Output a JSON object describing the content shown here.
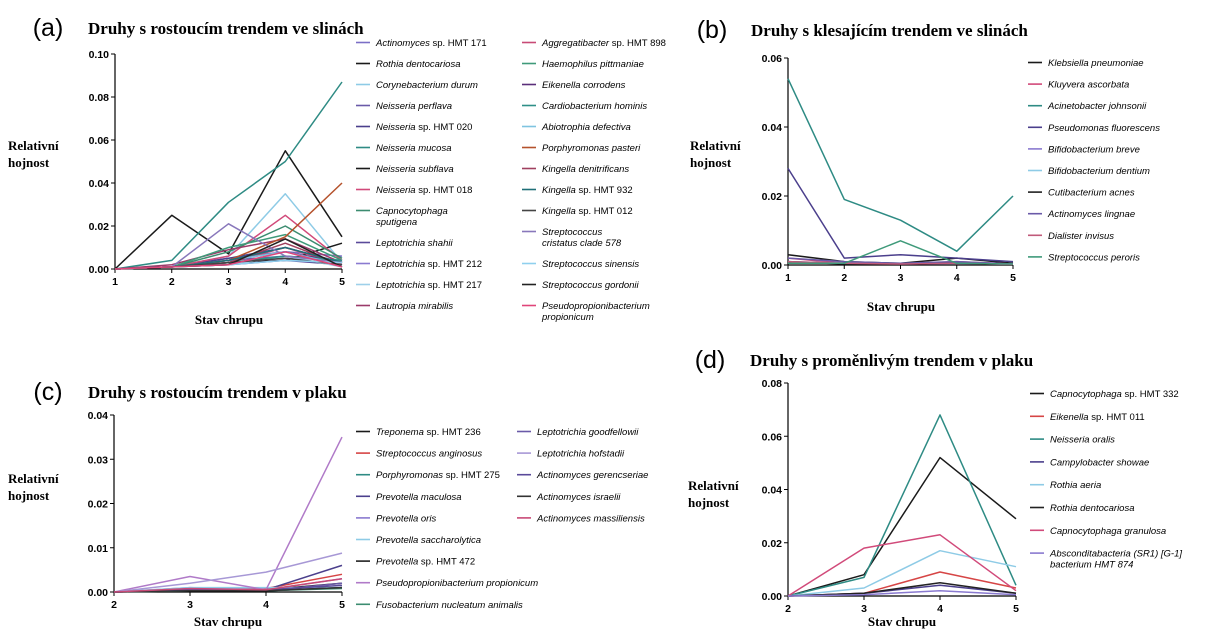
{
  "chart_data": [
    {
      "panel": "(a)",
      "type": "line",
      "title": "Druhy s rostoucím trendem ve slinách",
      "xlabel": "Stav chrupu",
      "ylabel": [
        "Relativní",
        "hojnost"
      ],
      "x": [
        1,
        2,
        3,
        4,
        5
      ],
      "xticks": [
        "1",
        "2",
        "3",
        "4",
        "5"
      ],
      "ylim": [
        0,
        0.1
      ],
      "yticks": [
        "0.00",
        "0.02",
        "0.04",
        "0.06",
        "0.08",
        "0.10"
      ],
      "legend_placement": "right, two columns",
      "series": [
        {
          "name": [
            "Actinomyces",
            " sp. HMT 171"
          ],
          "color": "#7b6fc6",
          "values": [
            0,
            0.001,
            0.005,
            0.008,
            0.006
          ]
        },
        {
          "name": [
            "Rothia dentocariosa"
          ],
          "color": "#1a1a1a",
          "values": [
            0,
            0.025,
            0.007,
            0.055,
            0.015
          ]
        },
        {
          "name": [
            "Corynebacterium durum"
          ],
          "color": "#8ecbe6",
          "values": [
            0,
            0.001,
            0.006,
            0.035,
            0.003
          ]
        },
        {
          "name": [
            "Neisseria perflava"
          ],
          "color": "#6a5aa8",
          "values": [
            0,
            0.001,
            0.004,
            0.006,
            0.004
          ]
        },
        {
          "name": [
            "Neisseria",
            " sp. HMT 020"
          ],
          "color": "#4b3f8c",
          "values": [
            0,
            0.001,
            0.005,
            0.01,
            0.003
          ]
        },
        {
          "name": [
            "Neisseria mucosa"
          ],
          "color": "#2e8b84",
          "values": [
            0,
            0.004,
            0.031,
            0.05,
            0.087
          ]
        },
        {
          "name": [
            "Neisseria subflava"
          ],
          "color": "#1a1a1a",
          "values": [
            0,
            0.001,
            0.003,
            0.004,
            0.012
          ]
        },
        {
          "name": [
            "Neisseria",
            " sp. HMT 018"
          ],
          "color": "#d14a7a",
          "values": [
            0,
            0.001,
            0.006,
            0.025,
            0.004
          ]
        },
        {
          "name": [
            "Capnocytophaga",
            "sputigena"
          ],
          "color": "#3c8c70",
          "values": [
            0,
            0.001,
            0.008,
            0.02,
            0.005
          ]
        },
        {
          "name": [
            "Leptotrichia shahii"
          ],
          "color": "#5a4a9a",
          "values": [
            0,
            0.001,
            0.002,
            0.004,
            0.002
          ]
        },
        {
          "name": [
            "Leptotrichia",
            " sp. HMT 212"
          ],
          "color": "#8a7ad0",
          "values": [
            0,
            0.001,
            0.003,
            0.005,
            0.002
          ]
        },
        {
          "name": [
            "Leptotrichia",
            " sp. HMT 217"
          ],
          "color": "#9ed0ea",
          "values": [
            0,
            0.001,
            0.002,
            0.006,
            0.001
          ]
        },
        {
          "name": [
            "Lautropia mirabilis"
          ],
          "color": "#9b3a6a",
          "values": [
            0,
            0.002,
            0.009,
            0.014,
            0.003
          ]
        },
        {
          "name": [
            "Aggregatibacter",
            " sp. HMT 898"
          ],
          "color": "#c84a76",
          "values": [
            0,
            0.001,
            0.003,
            0.01,
            0.002
          ]
        },
        {
          "name": [
            "Haemophilus pittmaniae"
          ],
          "color": "#3f9a7a",
          "values": [
            0,
            0.001,
            0.01,
            0.016,
            0.004
          ]
        },
        {
          "name": [
            "Eikenella corrodens"
          ],
          "color": "#5a2f7a",
          "values": [
            0,
            0.001,
            0.004,
            0.008,
            0.003
          ]
        },
        {
          "name": [
            "Cardiobacterium hominis"
          ],
          "color": "#2f8f88",
          "values": [
            0,
            0.001,
            0.003,
            0.006,
            0.004
          ]
        },
        {
          "name": [
            "Abiotrophia defectiva"
          ],
          "color": "#7fc4e0",
          "values": [
            0,
            0.001,
            0.004,
            0.008,
            0.002
          ]
        },
        {
          "name": [
            "Porphyromonas pasteri"
          ],
          "color": "#b5522c",
          "values": [
            0,
            0.001,
            0.004,
            0.015,
            0.04
          ]
        },
        {
          "name": [
            "Kingella denitrificans"
          ],
          "color": "#a0405f",
          "values": [
            0,
            0.001,
            0.003,
            0.012,
            0.002
          ]
        },
        {
          "name": [
            "Kingella",
            " sp. HMT 932"
          ],
          "color": "#1f6f78",
          "values": [
            0,
            0.001,
            0.004,
            0.01,
            0.003
          ]
        },
        {
          "name": [
            "Kingella",
            " sp. HMT 012"
          ],
          "color": "#444444",
          "values": [
            0,
            0.001,
            0.003,
            0.005,
            0.002
          ]
        },
        {
          "name": [
            "Streptococcus",
            "cristatus clade 578"
          ],
          "color": "#8877bb",
          "values": [
            0,
            0.001,
            0.021,
            0.006,
            0.003
          ]
        },
        {
          "name": [
            "Streptococcus sinensis"
          ],
          "color": "#8fd0ee",
          "values": [
            0,
            0.001,
            0.002,
            0.004,
            0.003
          ]
        },
        {
          "name": [
            "Streptococcus gordonii"
          ],
          "color": "#222222",
          "values": [
            0,
            0.001,
            0.002,
            0.014,
            0.001
          ]
        },
        {
          "name": [
            "Pseudopropionibacterium",
            "propionicum"
          ],
          "color": "#e0457a",
          "values": [
            0,
            0.001,
            0.002,
            0.008,
            0.001
          ]
        }
      ]
    },
    {
      "panel": "(b)",
      "type": "line",
      "title": "Druhy s klesajícím trendem ve slinách",
      "xlabel": "Stav chrupu",
      "ylabel": [
        "Relativní",
        "hojnost"
      ],
      "x": [
        1,
        2,
        3,
        4,
        5
      ],
      "xticks": [
        "1",
        "2",
        "3",
        "4",
        "5"
      ],
      "ylim": [
        0,
        0.06
      ],
      "yticks": [
        "0.00",
        "0.02",
        "0.04",
        "0.06"
      ],
      "legend_placement": "right",
      "series": [
        {
          "name": [
            "Klebsiella pneumoniae"
          ],
          "color": "#1a1a1a",
          "values": [
            0.003,
            0.001,
            0.0005,
            0.002,
            0.0005
          ]
        },
        {
          "name": [
            "Kluyvera ascorbata"
          ],
          "color": "#d14a7a",
          "values": [
            0.002,
            0.0005,
            0.0003,
            0.001,
            0.0003
          ]
        },
        {
          "name": [
            "Acinetobacter johnsonii"
          ],
          "color": "#2e8b84",
          "values": [
            0.054,
            0.019,
            0.013,
            0.004,
            0.02
          ]
        },
        {
          "name": [
            "Pseudomonas fluorescens"
          ],
          "color": "#4b3f8c",
          "values": [
            0.028,
            0.002,
            0.003,
            0.002,
            0.001
          ]
        },
        {
          "name": [
            "Bifidobacterium breve"
          ],
          "color": "#8a7ad0",
          "values": [
            0.001,
            0.0005,
            0.0003,
            0.0005,
            0.0002
          ]
        },
        {
          "name": [
            "Bifidobacterium dentium"
          ],
          "color": "#8ecbe6",
          "values": [
            0.001,
            0.0005,
            0.0005,
            0.0005,
            0.0003
          ]
        },
        {
          "name": [
            "Cutibacterium acnes"
          ],
          "color": "#222222",
          "values": [
            0.001,
            0.0003,
            0.0002,
            0.0008,
            0.0002
          ]
        },
        {
          "name": [
            "Actinomyces lingnae"
          ],
          "color": "#6a5aa8",
          "values": [
            0.002,
            0.001,
            0.0005,
            0.001,
            0.0003
          ]
        },
        {
          "name": [
            "Dialister invisus"
          ],
          "color": "#c05a7a",
          "values": [
            0.001,
            0.0005,
            0.0003,
            0.0005,
            0.0002
          ]
        },
        {
          "name": [
            "Streptococcus peroris"
          ],
          "color": "#3f9a7a",
          "values": [
            0.0005,
            0.0005,
            0.007,
            0.0005,
            0.0003
          ]
        }
      ]
    },
    {
      "panel": "(c)",
      "type": "line",
      "title": "Druhy s rostoucím trendem v plaku",
      "xlabel": "Stav chrupu",
      "ylabel": [
        "Relativní",
        "hojnost"
      ],
      "x": [
        2,
        3,
        4,
        5
      ],
      "xticks": [
        "2",
        "3",
        "4",
        "5"
      ],
      "ylim": [
        0,
        0.04
      ],
      "yticks": [
        "0.00",
        "0.01",
        "0.02",
        "0.03",
        "0.04"
      ],
      "legend_placement": "right, two columns",
      "series": [
        {
          "name": [
            "Treponema",
            " sp. HMT 236"
          ],
          "color": "#1a1a1a",
          "values": [
            0,
            0.0005,
            0.0005,
            0.002
          ]
        },
        {
          "name": [
            "Streptococcus anginosus"
          ],
          "color": "#d64545",
          "values": [
            0,
            0.0005,
            0.0008,
            0.004
          ]
        },
        {
          "name": [
            "Porphyromonas",
            " sp. HMT 275"
          ],
          "color": "#2e8b84",
          "values": [
            0,
            0.0005,
            0.0003,
            0.001
          ]
        },
        {
          "name": [
            "Prevotella maculosa"
          ],
          "color": "#4b3f8c",
          "values": [
            0,
            0.0008,
            0.0005,
            0.006
          ]
        },
        {
          "name": [
            "Prevotella oris"
          ],
          "color": "#8a7ad0",
          "values": [
            0,
            0.001,
            0.0005,
            0.003
          ]
        },
        {
          "name": [
            "Prevotella saccharolytica"
          ],
          "color": "#8ecbe6",
          "values": [
            0,
            0.001,
            0.001,
            0.001
          ]
        },
        {
          "name": [
            "Prevotella",
            " sp. HMT 472"
          ],
          "color": "#222222",
          "values": [
            0,
            0.0003,
            0.0003,
            0.001
          ]
        },
        {
          "name": [
            "Pseudopropionibacterium propionicum"
          ],
          "color": "#b07ac8",
          "values": [
            0,
            0.0035,
            0.0005,
            0.035
          ]
        },
        {
          "name": [
            "Fusobacterium nucleatum animalis"
          ],
          "color": "#3c8c70",
          "values": [
            0,
            0.0003,
            0.0003,
            0.0008
          ]
        },
        {
          "name": [
            "Leptotrichia goodfellowii"
          ],
          "color": "#6a5aa8",
          "values": [
            0,
            0.0005,
            0.0003,
            0.002
          ]
        },
        {
          "name": [
            "Leptotrichia hofstadii"
          ],
          "color": "#a798d6",
          "values": [
            0,
            0.002,
            0.0045,
            0.0088
          ]
        },
        {
          "name": [
            "Actinomyces gerencseriae"
          ],
          "color": "#5a4a9a",
          "values": [
            0,
            0.0005,
            0.0005,
            0.0015
          ]
        },
        {
          "name": [
            "Actinomyces israelii"
          ],
          "color": "#333333",
          "values": [
            0,
            0.0003,
            0.0003,
            0.001
          ]
        },
        {
          "name": [
            "Actinomyces massiliensis"
          ],
          "color": "#c84a76",
          "values": [
            0,
            0.0008,
            0.0005,
            0.003
          ]
        }
      ]
    },
    {
      "panel": "(d)",
      "type": "line",
      "title": "Druhy s proměnlivým trendem v plaku",
      "xlabel": "Stav chrupu",
      "ylabel": [
        "Relativní",
        "hojnost"
      ],
      "x": [
        2,
        3,
        4,
        5
      ],
      "xticks": [
        "2",
        "3",
        "4",
        "5"
      ],
      "ylim": [
        0,
        0.08
      ],
      "yticks": [
        "0.00",
        "0.02",
        "0.04",
        "0.06",
        "0.08"
      ],
      "legend_placement": "right",
      "series": [
        {
          "name": [
            "Capnocytophaga",
            " sp. HMT 332"
          ],
          "color": "#1a1a1a",
          "values": [
            0,
            0.008,
            0.052,
            0.029
          ]
        },
        {
          "name": [
            "Eikenella",
            " sp. HMT 011"
          ],
          "color": "#d64545",
          "values": [
            0,
            0.001,
            0.009,
            0.003
          ]
        },
        {
          "name": [
            "Neisseria oralis"
          ],
          "color": "#2e8b84",
          "values": [
            0,
            0.007,
            0.068,
            0.004
          ]
        },
        {
          "name": [
            "Campylobacter showae"
          ],
          "color": "#4b3f8c",
          "values": [
            0,
            0.001,
            0.004,
            0.001
          ]
        },
        {
          "name": [
            "Rothia aeria"
          ],
          "color": "#8ecbe6",
          "values": [
            0,
            0.003,
            0.017,
            0.011
          ]
        },
        {
          "name": [
            "Rothia dentocariosa"
          ],
          "color": "#222222",
          "values": [
            0,
            0.001,
            0.005,
            0.001
          ]
        },
        {
          "name": [
            "Capnocytophaga granulosa"
          ],
          "color": "#d14a7a",
          "values": [
            0,
            0.018,
            0.023,
            0.002
          ]
        },
        {
          "name": [
            "Absconditabacteria (SR1) [G-1]",
            "bacterium HMT 874"
          ],
          "color": "#8a7ad0",
          "values": [
            0,
            0.0005,
            0.002,
            0.0005
          ]
        }
      ]
    }
  ]
}
